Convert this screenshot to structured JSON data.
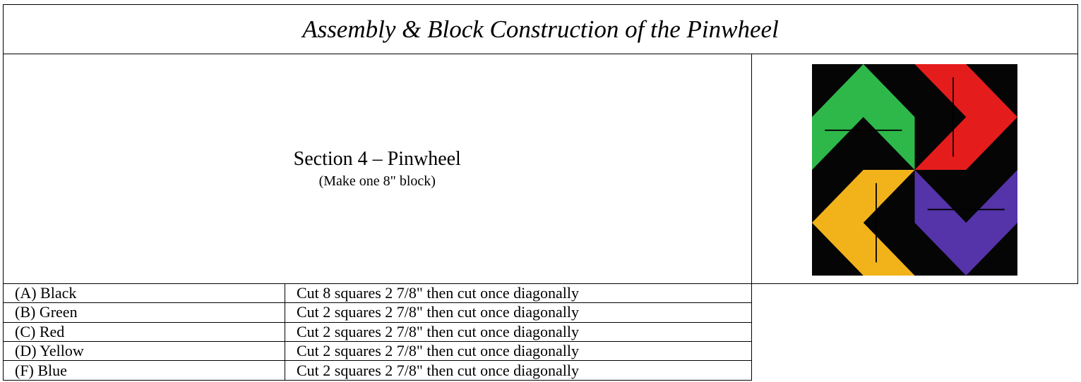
{
  "title": "Assembly & Block Construction of the Pinwheel",
  "section": {
    "heading": "Section 4 – Pinwheel",
    "subheading": "(Make one 8\" block)"
  },
  "rows": [
    [
      "(A) Black",
      "Cut 8 squares 2 7/8\" then cut once diagonally"
    ],
    [
      "(B) Green",
      "Cut 2 squares 2 7/8\" then cut once diagonally"
    ],
    [
      "(C) Red",
      "Cut 2 squares 2 7/8\" then cut once diagonally"
    ],
    [
      "(D) Yellow",
      "Cut 2 squares 2 7/8\" then cut once diagonally"
    ],
    [
      "(F) Blue",
      "Cut 2 squares 2 7/8\" then cut once diagonally"
    ]
  ]
}
